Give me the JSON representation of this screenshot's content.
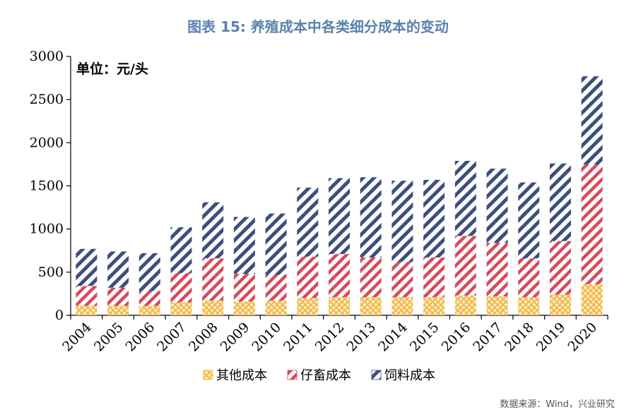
{
  "header": {
    "title": "图表 15: 养殖成本中各类细分成本的变动"
  },
  "source": "数据来源：Wind，兴业研究",
  "colors": {
    "other": "#f0b437",
    "piglet": "#d64a5d",
    "feed": "#3c4f7e",
    "title": "#5b82ad"
  },
  "chart_data": {
    "type": "bar",
    "stacked": true,
    "unit_label": "单位：元/头",
    "categories": [
      "2004",
      "2005",
      "2006",
      "2007",
      "2008",
      "2009",
      "2010",
      "2011",
      "2012",
      "2013",
      "2014",
      "2015",
      "2016",
      "2017",
      "2018",
      "2019",
      "2020"
    ],
    "series": [
      {
        "name": "其他成本",
        "key": "other",
        "values": [
          110,
          110,
          110,
          150,
          170,
          160,
          170,
          200,
          210,
          210,
          210,
          210,
          230,
          220,
          210,
          240,
          360
        ]
      },
      {
        "name": "仔畜成本",
        "key": "piglet",
        "values": [
          230,
          210,
          170,
          340,
          490,
          320,
          300,
          480,
          500,
          460,
          410,
          460,
          690,
          620,
          450,
          620,
          1390
        ]
      },
      {
        "name": "饲料成本",
        "key": "feed",
        "values": [
          430,
          420,
          440,
          530,
          650,
          660,
          710,
          800,
          880,
          930,
          940,
          900,
          870,
          860,
          880,
          900,
          1020
        ]
      }
    ],
    "yticks": [
      0,
      500,
      1000,
      1500,
      2000,
      2500,
      3000
    ],
    "ylim": [
      0,
      3000
    ],
    "grid": false,
    "legend_position": "bottom"
  }
}
